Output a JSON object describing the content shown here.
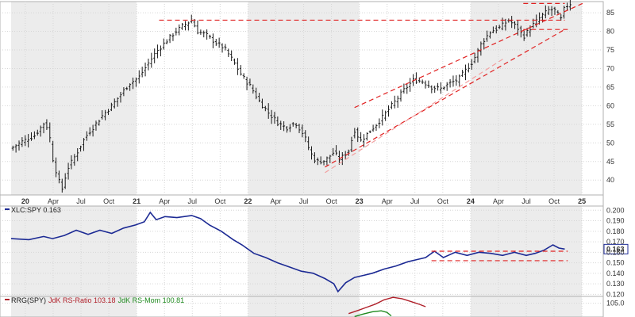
{
  "chart_data": [
    {
      "type": "ohlc",
      "panel": "price",
      "x_tick_labels": [
        "20",
        "Apr",
        "Jul",
        "Oct",
        "21",
        "Apr",
        "Jul",
        "Oct",
        "22",
        "Apr",
        "Jul",
        "Oct",
        "23",
        "Apr",
        "Jul",
        "Oct",
        "24",
        "Apr",
        "Jul",
        "Oct",
        "25"
      ],
      "year_labels": [
        "20",
        "21",
        "22",
        "23",
        "24",
        "25"
      ],
      "y_tick_labels": [
        "40",
        "45",
        "50",
        "55",
        "60",
        "65",
        "70",
        "75",
        "80",
        "85"
      ],
      "ylim": [
        36,
        88
      ],
      "grid": true,
      "price_path": [
        [
          0,
          48.5
        ],
        [
          2,
          50.5
        ],
        [
          4,
          52
        ],
        [
          5.5,
          55.2
        ],
        [
          6.3,
          54
        ],
        [
          7,
          46
        ],
        [
          8,
          40
        ],
        [
          8.6,
          37.5
        ],
        [
          9.5,
          43
        ],
        [
          11,
          47
        ],
        [
          12.5,
          51.5
        ],
        [
          14,
          54.5
        ],
        [
          15.5,
          57.5
        ],
        [
          17,
          60
        ],
        [
          18.5,
          63
        ],
        [
          20,
          66
        ],
        [
          21.5,
          67.5
        ],
        [
          23,
          71
        ],
        [
          24.5,
          74.5
        ],
        [
          26,
          77
        ],
        [
          27.5,
          79.5
        ],
        [
          29,
          81.5
        ],
        [
          30.5,
          83
        ],
        [
          31.5,
          80
        ],
        [
          33,
          79
        ],
        [
          34.5,
          77
        ],
        [
          36,
          75.5
        ],
        [
          37.5,
          72
        ],
        [
          39,
          68
        ],
        [
          40.5,
          65
        ],
        [
          42,
          61
        ],
        [
          43.5,
          58
        ],
        [
          45,
          55.5
        ],
        [
          46.5,
          54
        ],
        [
          48,
          55.5
        ],
        [
          49.5,
          52
        ],
        [
          50.5,
          47.5
        ],
        [
          51.5,
          45
        ],
        [
          53,
          45.2
        ],
        [
          54.5,
          47.5
        ],
        [
          55.5,
          45.5
        ],
        [
          57,
          48
        ],
        [
          58,
          53.5
        ],
        [
          59,
          50.5
        ],
        [
          60.5,
          53
        ],
        [
          62,
          55.5
        ],
        [
          63.5,
          58.5
        ],
        [
          65,
          61.5
        ],
        [
          66.5,
          64.5
        ],
        [
          68,
          67
        ],
        [
          69.5,
          66.5
        ],
        [
          71,
          65
        ],
        [
          72.5,
          64.5
        ],
        [
          74,
          66
        ],
        [
          75.5,
          67
        ],
        [
          76.5,
          69
        ],
        [
          78,
          72
        ],
        [
          79.5,
          77
        ],
        [
          81,
          80
        ],
        [
          82.5,
          81
        ],
        [
          84,
          83
        ],
        [
          85.5,
          81
        ],
        [
          86.5,
          78.5
        ],
        [
          88,
          81.5
        ],
        [
          89.5,
          84
        ],
        [
          91,
          86
        ],
        [
          92,
          85.5
        ],
        [
          92.8,
          83
        ],
        [
          93.5,
          86.5
        ],
        [
          94.5,
          87.5
        ]
      ],
      "resistance_level": 83,
      "breakout_band": [
        80.5,
        83
      ],
      "top_box_level": 87.5,
      "channel_upper": [
        [
          58,
          59.5
        ],
        [
          96.5,
          87.5
        ]
      ],
      "channel_lower": [
        [
          53,
          43.5
        ],
        [
          93.5,
          80.5
        ]
      ],
      "channel_outer_lower": [
        [
          53,
          42
        ],
        [
          83.5,
          73
        ]
      ],
      "colors": {
        "bars": "#1a1a1a",
        "lines": "#e02020",
        "channel_outer": "#f2a0a0"
      }
    },
    {
      "type": "line",
      "panel": "relative-strength",
      "legend": "XLC:SPY 0.163",
      "last_value": "0.163",
      "y_tick_labels": [
        "0.120",
        "0.130",
        "0.140",
        "0.150",
        "0.160",
        "0.170",
        "0.180",
        "0.190",
        "0.200"
      ],
      "ylim": [
        0.118,
        0.204
      ],
      "grid": true,
      "series": [
        {
          "points": [
            [
              0,
              0.173
            ],
            [
              3,
              0.172
            ],
            [
              5.5,
              0.175
            ],
            [
              7,
              0.173
            ],
            [
              9,
              0.176
            ],
            [
              11,
              0.181
            ],
            [
              13,
              0.177
            ],
            [
              15,
              0.181
            ],
            [
              17,
              0.178
            ],
            [
              19,
              0.183
            ],
            [
              21,
              0.186
            ],
            [
              22.5,
              0.189
            ],
            [
              23.5,
              0.198
            ],
            [
              24.5,
              0.191
            ],
            [
              26,
              0.194
            ],
            [
              28,
              0.193
            ],
            [
              30.5,
              0.195
            ],
            [
              32,
              0.192
            ],
            [
              33.5,
              0.186
            ],
            [
              35.5,
              0.18
            ],
            [
              37.5,
              0.172
            ],
            [
              39,
              0.167
            ],
            [
              41,
              0.159
            ],
            [
              43,
              0.155
            ],
            [
              45,
              0.15
            ],
            [
              47,
              0.146
            ],
            [
              49,
              0.142
            ],
            [
              51,
              0.14
            ],
            [
              53,
              0.135
            ],
            [
              54.5,
              0.13
            ],
            [
              55.2,
              0.1225
            ],
            [
              56.5,
              0.131
            ],
            [
              58,
              0.136
            ],
            [
              59.5,
              0.138
            ],
            [
              61,
              0.14
            ],
            [
              63,
              0.144
            ],
            [
              65,
              0.147
            ],
            [
              67,
              0.151
            ],
            [
              68.5,
              0.153
            ],
            [
              70,
              0.155
            ],
            [
              71.5,
              0.161
            ],
            [
              73,
              0.155
            ],
            [
              75,
              0.16
            ],
            [
              77,
              0.157
            ],
            [
              79,
              0.16
            ],
            [
              81,
              0.159
            ],
            [
              83,
              0.157
            ],
            [
              85,
              0.16
            ],
            [
              87,
              0.157
            ],
            [
              88.5,
              0.159
            ],
            [
              90,
              0.162
            ],
            [
              91.5,
              0.167
            ],
            [
              92.5,
              0.164
            ],
            [
              93.5,
              0.163
            ]
          ],
          "color": "#1c2a94"
        }
      ],
      "resistance": 0.161,
      "support": 0.152,
      "lines_span": [
        71,
        94
      ]
    },
    {
      "type": "line",
      "panel": "rrg",
      "legend": [
        "RRG(SPY)",
        "JdK RS-Ratio 103.18",
        "JdK RS-Mom 100.81"
      ],
      "y_tick_labels": [
        "105.0"
      ],
      "ylim": [
        99,
        108
      ],
      "series": [
        {
          "points": [
            [
              57,
              100.5
            ],
            [
              58.5,
              101.8
            ],
            [
              60,
              103.2
            ],
            [
              61.5,
              104.6
            ],
            [
              63,
              106.5
            ],
            [
              64.5,
              107.6
            ],
            [
              66,
              107.0
            ],
            [
              67.5,
              105.8
            ],
            [
              69,
              104.5
            ],
            [
              70,
              103.5
            ]
          ],
          "color": "#b0202a"
        },
        {
          "points": [
            [
              58,
              99.2
            ],
            [
              59.5,
              100.3
            ],
            [
              61,
              101.3
            ],
            [
              62.5,
              101.7
            ],
            [
              63.5,
              101.0
            ],
            [
              64.2,
              99.5
            ]
          ],
          "color": "#1e8a1e"
        }
      ],
      "legend_colors": {
        "label": "#1a1a1a",
        "ratio": "#b0202a",
        "mom": "#1e8a1e"
      }
    }
  ]
}
